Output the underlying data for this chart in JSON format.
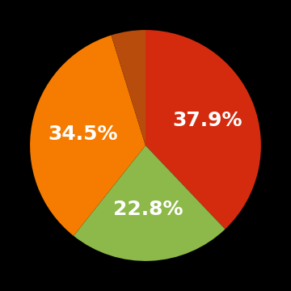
{
  "slices": [
    37.9,
    22.8,
    34.5,
    4.8
  ],
  "colors": [
    "#d42b0f",
    "#8db84a",
    "#f57c00",
    "#b84c0c"
  ],
  "labels": [
    "37.9%",
    "22.8%",
    "34.5%",
    ""
  ],
  "startangle": 90,
  "background_color": "#000000",
  "text_color": "#ffffff",
  "label_fontsize": 18,
  "label_fontweight": "bold",
  "label_radii": [
    0.58,
    0.55,
    0.55,
    0.55
  ]
}
